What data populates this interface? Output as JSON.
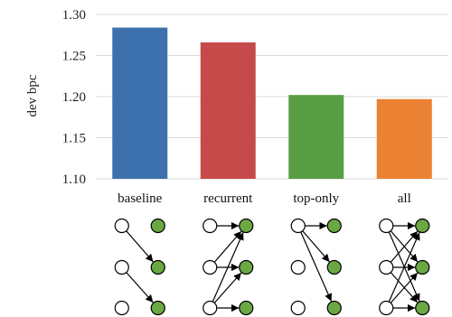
{
  "chart_data": {
    "type": "bar",
    "title": "",
    "xlabel": "",
    "ylabel": "dev bpc",
    "ylim": [
      1.1,
      1.3
    ],
    "yticks": [
      "1.10",
      "1.15",
      "1.20",
      "1.25",
      "1.30"
    ],
    "grid": true,
    "categories": [
      "baseline",
      "recurrent",
      "top-only",
      "all"
    ],
    "values": [
      1.284,
      1.266,
      1.202,
      1.197
    ],
    "colors": [
      "#3d71ad",
      "#c74a4a",
      "#5a9e44",
      "#ec8233"
    ],
    "connection_diagrams": [
      {
        "category": "baseline",
        "edges": [
          [
            0,
            1
          ],
          [
            1,
            2
          ]
        ]
      },
      {
        "category": "recurrent",
        "edges": [
          [
            0,
            0
          ],
          [
            1,
            0
          ],
          [
            1,
            1
          ],
          [
            2,
            0
          ],
          [
            2,
            1
          ],
          [
            2,
            2
          ]
        ]
      },
      {
        "category": "top-only",
        "edges": [
          [
            0,
            0
          ],
          [
            0,
            1
          ],
          [
            0,
            2
          ]
        ]
      },
      {
        "category": "all",
        "edges": [
          [
            0,
            0
          ],
          [
            0,
            1
          ],
          [
            0,
            2
          ],
          [
            1,
            0
          ],
          [
            1,
            1
          ],
          [
            1,
            2
          ],
          [
            2,
            0
          ],
          [
            2,
            1
          ],
          [
            2,
            2
          ]
        ]
      }
    ]
  }
}
